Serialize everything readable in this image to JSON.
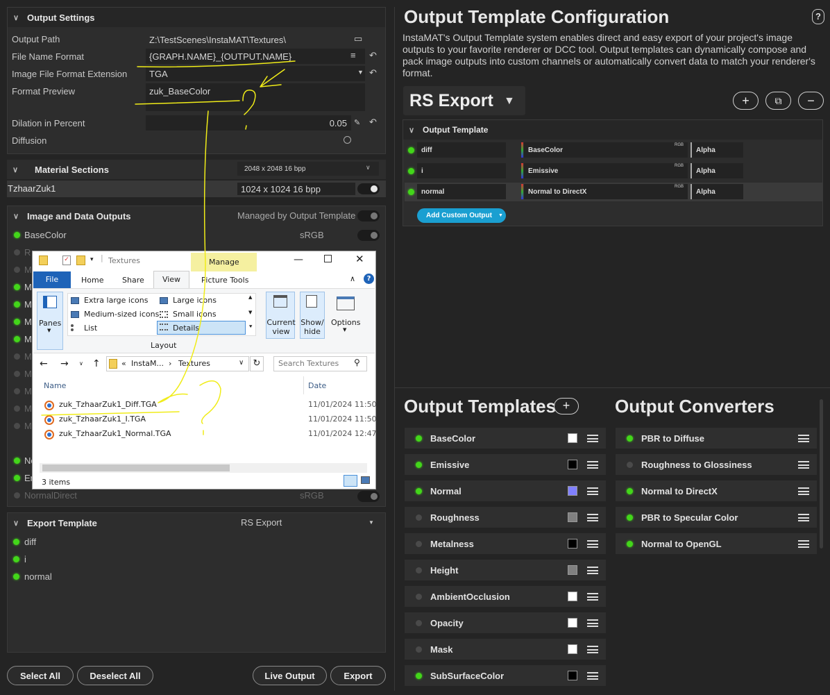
{
  "output_settings": {
    "title": "Output Settings",
    "output_path_label": "Output Path",
    "output_path": "Z:\\TestScenes\\InstaMAT\\Textures\\",
    "file_name_format_label": "File Name Format",
    "file_name_format": "{GRAPH.NAME}_{OUTPUT.NAME}",
    "image_ext_label": "Image File Format Extension",
    "image_ext": "TGA",
    "format_preview_label": "Format Preview",
    "format_preview": "zuk_BaseColor",
    "dilation_label": "Dilation in Percent",
    "dilation": "0.05",
    "diffusion_label": "Diffusion"
  },
  "material_sections": {
    "title": "Material Sections",
    "resolution": "2048 x 2048 16 bpp",
    "item_name": "TzhaarZuk1",
    "item_resolution": "1024 x 1024 16 bpp"
  },
  "image_outputs": {
    "title": "Image and Data Outputs",
    "managed_label": "Managed by Output Template",
    "first_name": "BaseColor",
    "first_space": "sRGB",
    "partial": [
      "R",
      "M",
      "M",
      "M",
      "M",
      "M",
      "M",
      "M",
      "M",
      "M",
      "M",
      "Ne",
      "En"
    ],
    "last_name": "NormalDirect",
    "last_space": "sRGB"
  },
  "export_template": {
    "title": "Export Template",
    "value": "RS Export",
    "items": [
      "diff",
      "i",
      "normal"
    ]
  },
  "footer": {
    "select_all": "Select All",
    "deselect_all": "Deselect All",
    "live_output": "Live Output",
    "export": "Export"
  },
  "config": {
    "title": "Output Template Configuration",
    "help": "?",
    "description": "InstaMAT's Output Template system enables direct and easy export of your project's image outputs to your favorite renderer or DCC tool. Output templates can dynamically compose and pack image outputs into custom channels or automatically convert data to match your renderer's format.",
    "template_name": "RS Export",
    "section_title": "Output Template",
    "rows": [
      {
        "name": "diff",
        "source": "BaseColor",
        "fmt": "RGB",
        "alpha": "Alpha"
      },
      {
        "name": "i",
        "source": "Emissive",
        "fmt": "RGB",
        "alpha": "Alpha"
      },
      {
        "name": "normal",
        "source": "Normal to DirectX",
        "fmt": "RGB",
        "alpha": "Alpha"
      }
    ],
    "add_custom": "Add Custom Output"
  },
  "output_templates": {
    "title": "Output Templates",
    "items": [
      {
        "name": "BaseColor",
        "on": true,
        "color": "#ffffff"
      },
      {
        "name": "Emissive",
        "on": true,
        "color": "#000000"
      },
      {
        "name": "Normal",
        "on": true,
        "color": "#8080ff"
      },
      {
        "name": "Roughness",
        "on": false,
        "color": "#808080"
      },
      {
        "name": "Metalness",
        "on": false,
        "color": "#000000"
      },
      {
        "name": "Height",
        "on": false,
        "color": "#808080"
      },
      {
        "name": "AmbientOcclusion",
        "on": false,
        "color": "#ffffff"
      },
      {
        "name": "Opacity",
        "on": false,
        "color": "#ffffff"
      },
      {
        "name": "Mask",
        "on": false,
        "color": "#ffffff"
      },
      {
        "name": "SubSurfaceColor",
        "on": true,
        "color": "#000000"
      }
    ]
  },
  "output_converters": {
    "title": "Output Converters",
    "items": [
      {
        "name": "PBR to Diffuse",
        "on": true
      },
      {
        "name": "Roughness to Glossiness",
        "on": false
      },
      {
        "name": "Normal to DirectX",
        "on": true
      },
      {
        "name": "PBR to Specular Color",
        "on": true
      },
      {
        "name": "Normal to OpenGL",
        "on": true
      }
    ]
  },
  "explorer": {
    "title": "Textures",
    "manage": "Manage",
    "tabs": [
      "File",
      "Home",
      "Share",
      "View"
    ],
    "picture_tools": "Picture Tools",
    "layout_items": [
      "Extra large icons",
      "Large icons",
      "Medium-sized icons",
      "Small icons",
      "List",
      "Details"
    ],
    "panes": "Panes",
    "layout_label": "Layout",
    "current_view": "Current view",
    "show_hide": "Show/ hide",
    "options": "Options",
    "breadcrumb_prefix": "«",
    "breadcrumb_1": "InstaM...",
    "breadcrumb_2": "Textures",
    "search_placeholder": "Search Textures",
    "col_name": "Name",
    "col_date": "Date",
    "files": [
      {
        "name": "zuk_TzhaarZuk1_Diff.TGA",
        "date": "11/01/2024 11:50"
      },
      {
        "name": "zuk_TzhaarZuk1_I.TGA",
        "date": "11/01/2024 11:50"
      },
      {
        "name": "zuk_TzhaarZuk1_Normal.TGA",
        "date": "11/01/2024 12:47"
      }
    ],
    "status": "3 items"
  },
  "colors": {
    "accent_green": "#43d61a",
    "add_button": "#1a9fd1",
    "file_tab": "#1e63b8",
    "manage_tab": "#f5f0a0"
  }
}
